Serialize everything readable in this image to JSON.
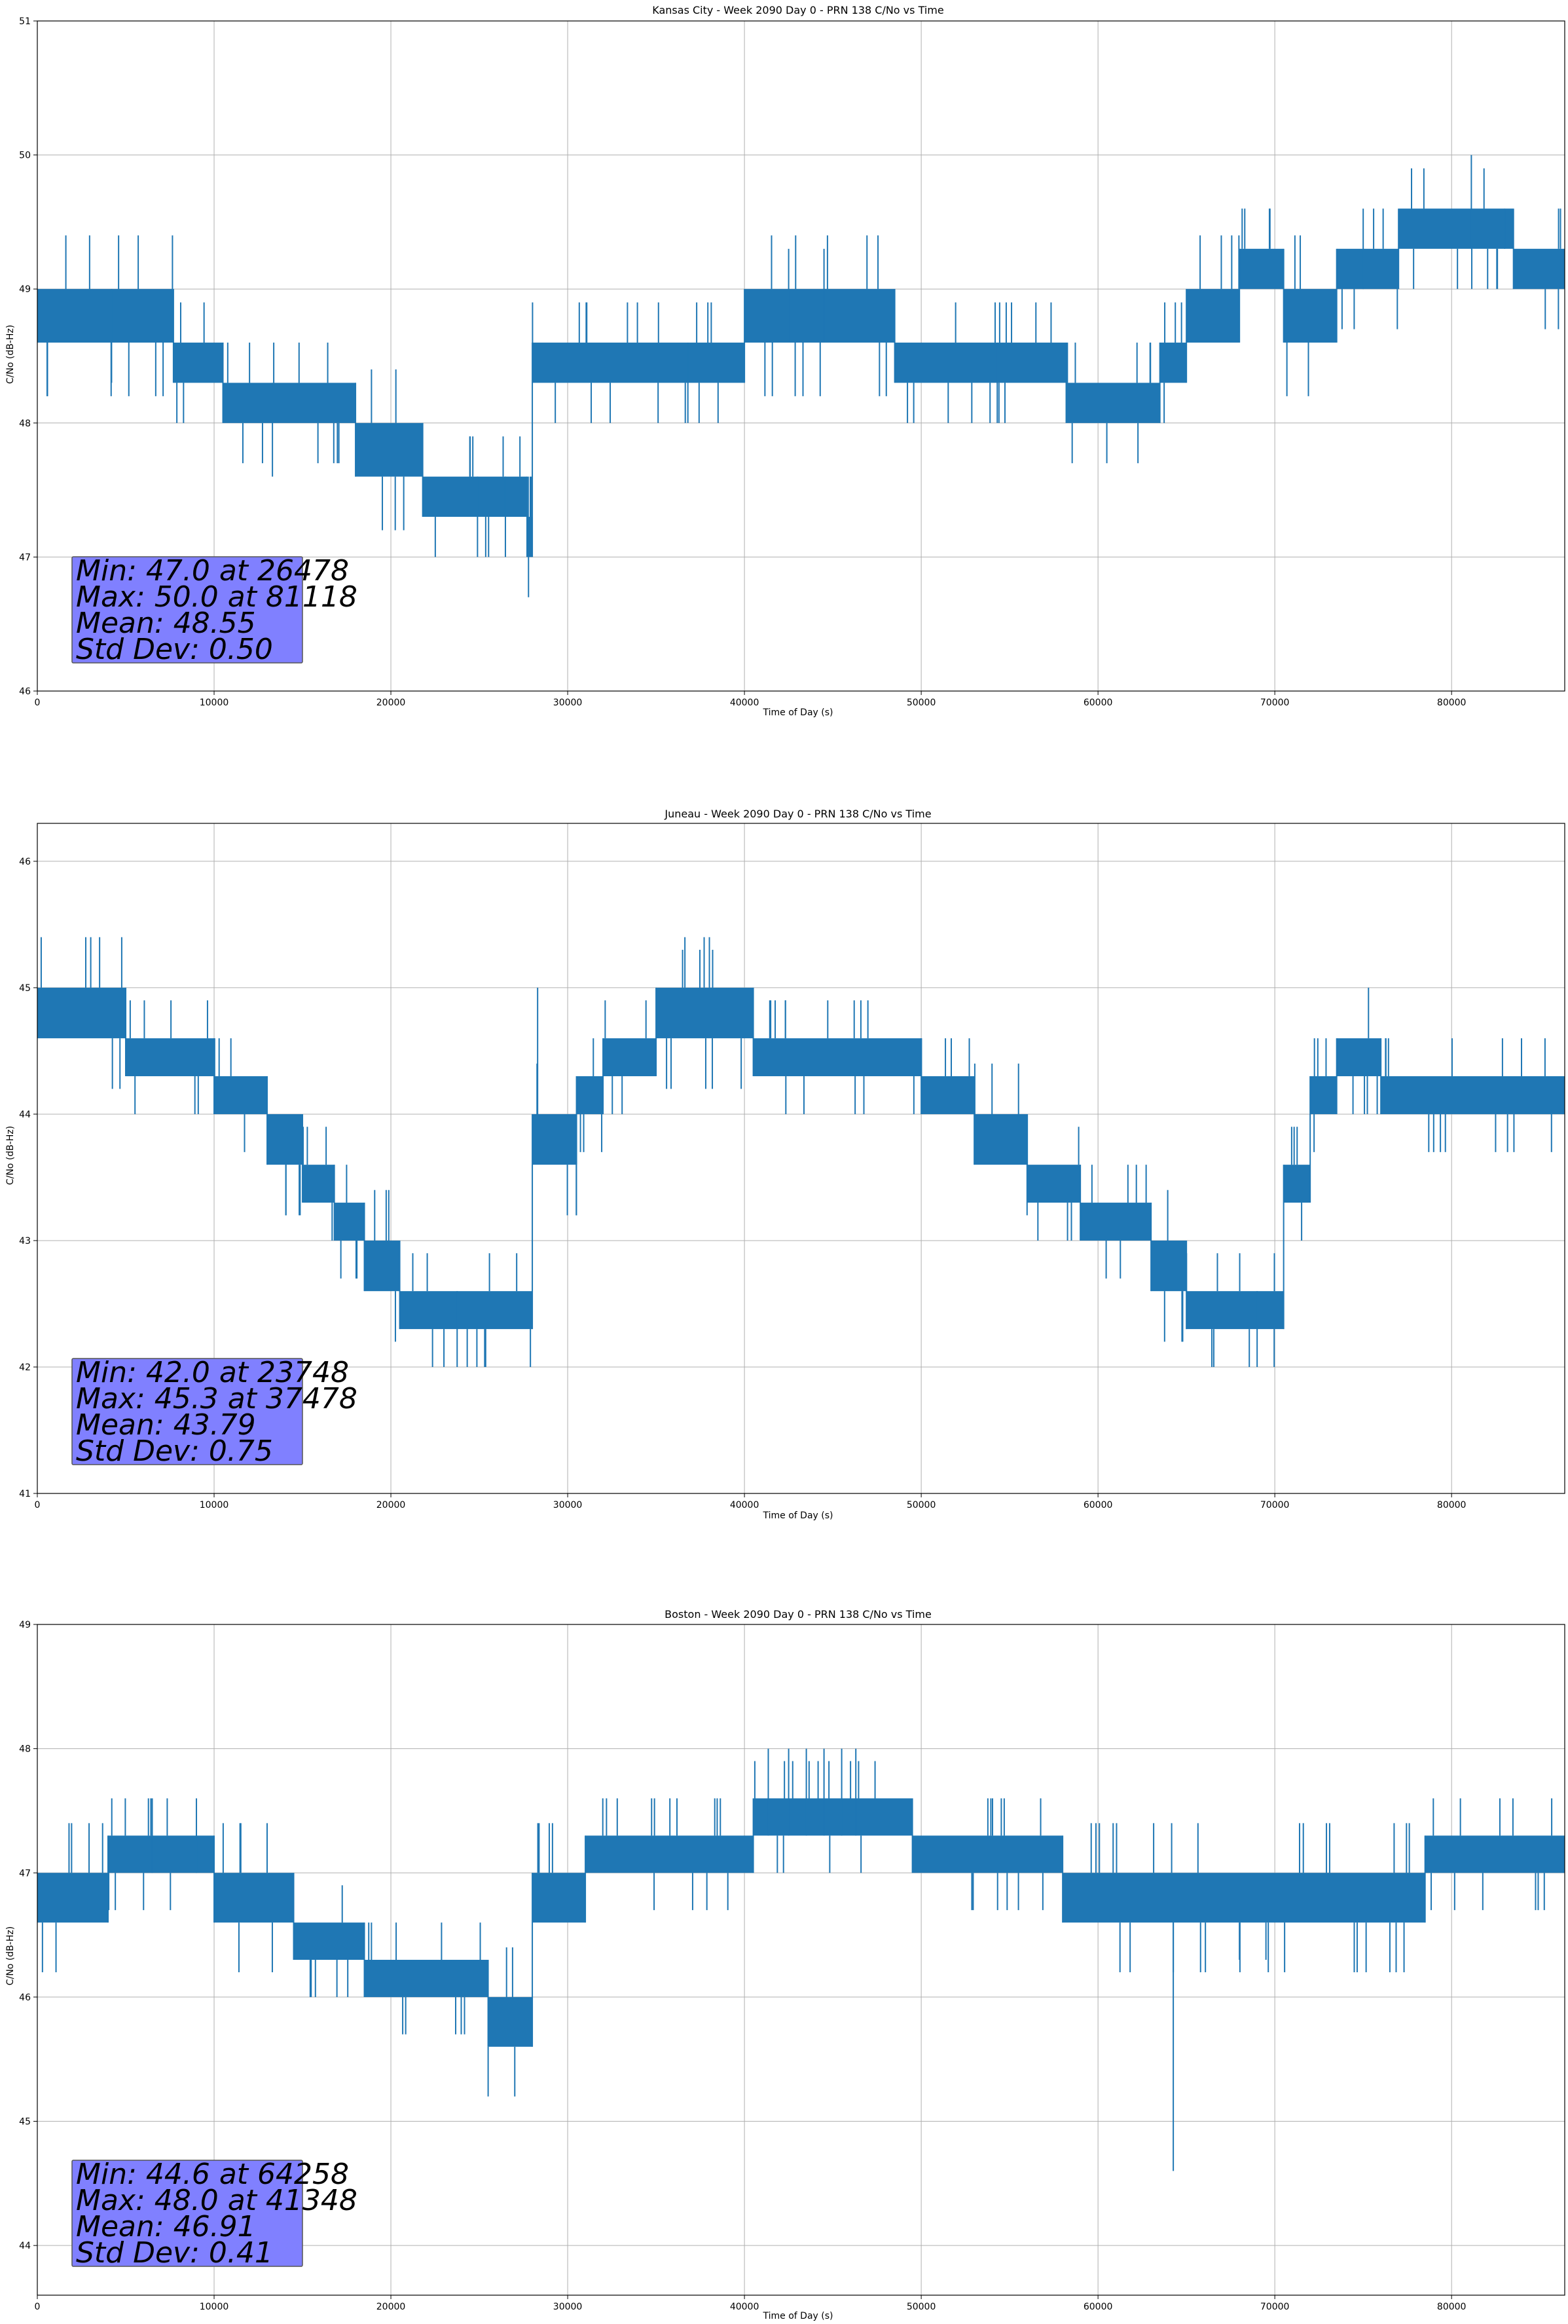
{
  "figure": {
    "charts": [
      {
        "title": "Kansas City - Week 2090 Day 0 - PRN 138 C/No vs Time",
        "xlabel": "Time of Day (s)",
        "ylabel": "C/No (dB-Hz)",
        "stats": [
          "Min: 47.0 at 26478",
          "Max: 50.0 at 81118",
          "Mean: 48.55",
          "Std Dev: 0.50"
        ]
      },
      {
        "title": "Juneau - Week 2090 Day 0 - PRN 138 C/No vs Time",
        "xlabel": "Time of Day (s)",
        "ylabel": "C/No (dB-Hz)",
        "stats": [
          "Min: 42.0 at 23748",
          "Max: 45.3 at 37478",
          "Mean: 43.79",
          "Std Dev: 0.75"
        ]
      },
      {
        "title": "Boston - Week 2090 Day 0 - PRN 138 C/No vs Time",
        "xlabel": "Time of Day (s)",
        "ylabel": "C/No (dB-Hz)",
        "stats": [
          "Min: 44.6 at 64258",
          "Max: 48.0 at 41348",
          "Mean: 46.91",
          "Std Dev: 0.41"
        ]
      }
    ]
  },
  "colors": {
    "series": "#1f77b4",
    "grid": "#b0b0b0",
    "stats_box_fill": "#8080ff",
    "stats_box_edge": "#555555"
  },
  "chart_data": [
    {
      "type": "line",
      "title": "Kansas City - Week 2090 Day 0 - PRN 138 C/No vs Time",
      "xlabel": "Time of Day (s)",
      "ylabel": "C/No (dB-Hz)",
      "xlim": [
        0,
        86400
      ],
      "ylim": [
        46,
        51
      ],
      "xticks": [
        0,
        10000,
        20000,
        30000,
        40000,
        50000,
        60000,
        70000,
        80000
      ],
      "yticks": [
        46,
        47,
        48,
        49,
        50,
        51
      ],
      "grid": true,
      "series": [
        {
          "segments": [
            {
              "x0": 0,
              "x1": 7700,
              "lo": 48.6,
              "hi": 49.0
            },
            {
              "x0": 7700,
              "x1": 10500,
              "lo": 48.3,
              "hi": 48.6
            },
            {
              "x0": 10500,
              "x1": 18000,
              "lo": 48.0,
              "hi": 48.3
            },
            {
              "x0": 18000,
              "x1": 21800,
              "lo": 47.6,
              "hi": 48.0
            },
            {
              "x0": 21800,
              "x1": 27700,
              "lo": 47.3,
              "hi": 47.6
            },
            {
              "x0": 27700,
              "x1": 28000,
              "lo": 47.0,
              "hi": 47.3
            },
            {
              "x0": 28000,
              "x1": 40000,
              "lo": 48.3,
              "hi": 48.6
            },
            {
              "x0": 40000,
              "x1": 48500,
              "lo": 48.6,
              "hi": 49.0
            },
            {
              "x0": 48500,
              "x1": 58200,
              "lo": 48.3,
              "hi": 48.6
            },
            {
              "x0": 58200,
              "x1": 63500,
              "lo": 48.0,
              "hi": 48.3
            },
            {
              "x0": 63500,
              "x1": 65000,
              "lo": 48.3,
              "hi": 48.6
            },
            {
              "x0": 65000,
              "x1": 68000,
              "lo": 48.6,
              "hi": 49.0
            },
            {
              "x0": 68000,
              "x1": 70500,
              "lo": 49.0,
              "hi": 49.3
            },
            {
              "x0": 70500,
              "x1": 73500,
              "lo": 48.6,
              "hi": 49.0
            },
            {
              "x0": 73500,
              "x1": 77000,
              "lo": 49.0,
              "hi": 49.3
            },
            {
              "x0": 77000,
              "x1": 83500,
              "lo": 49.3,
              "hi": 49.6
            },
            {
              "x0": 83500,
              "x1": 86400,
              "lo": 49.0,
              "hi": 49.3
            }
          ],
          "excursions": [
            {
              "x": 4200,
              "lo": 48.3,
              "hi": 49.0
            },
            {
              "x": 13300,
              "lo": 47.6,
              "hi": 48.3
            },
            {
              "x": 24900,
              "lo": 47.0,
              "hi": 47.6
            },
            {
              "x": 26478,
              "lo": 47.0,
              "hi": 47.6
            },
            {
              "x": 36800,
              "lo": 48.0,
              "hi": 48.6
            },
            {
              "x": 42500,
              "lo": 48.6,
              "hi": 49.3
            },
            {
              "x": 44500,
              "lo": 48.6,
              "hi": 49.3
            },
            {
              "x": 54300,
              "lo": 48.0,
              "hi": 48.6
            },
            {
              "x": 75000,
              "lo": 49.0,
              "hi": 49.6
            },
            {
              "x": 81118,
              "lo": 49.3,
              "hi": 50.0
            },
            {
              "x": 83000,
              "lo": 49.3,
              "hi": 49.6
            }
          ]
        }
      ]
    },
    {
      "type": "line",
      "title": "Juneau - Week 2090 Day 0 - PRN 138 C/No vs Time",
      "xlabel": "Time of Day (s)",
      "ylabel": "C/No (dB-Hz)",
      "xlim": [
        0,
        86400
      ],
      "ylim": [
        41,
        46.3
      ],
      "xticks": [
        0,
        10000,
        20000,
        30000,
        40000,
        50000,
        60000,
        70000,
        80000
      ],
      "yticks": [
        41,
        42,
        43,
        44,
        45,
        46
      ],
      "grid": true,
      "series": [
        {
          "segments": [
            {
              "x0": 0,
              "x1": 5000,
              "lo": 44.6,
              "hi": 45.0
            },
            {
              "x0": 5000,
              "x1": 10000,
              "lo": 44.3,
              "hi": 44.6
            },
            {
              "x0": 10000,
              "x1": 13000,
              "lo": 44.0,
              "hi": 44.3
            },
            {
              "x0": 13000,
              "x1": 15000,
              "lo": 43.6,
              "hi": 44.0
            },
            {
              "x0": 15000,
              "x1": 16800,
              "lo": 43.3,
              "hi": 43.6
            },
            {
              "x0": 16800,
              "x1": 18500,
              "lo": 43.0,
              "hi": 43.3
            },
            {
              "x0": 18500,
              "x1": 20500,
              "lo": 42.6,
              "hi": 43.0
            },
            {
              "x0": 20500,
              "x1": 28000,
              "lo": 42.3,
              "hi": 42.6
            },
            {
              "x0": 28000,
              "x1": 30500,
              "lo": 43.6,
              "hi": 44.0
            },
            {
              "x0": 30500,
              "x1": 32000,
              "lo": 44.0,
              "hi": 44.3
            },
            {
              "x0": 32000,
              "x1": 35000,
              "lo": 44.3,
              "hi": 44.6
            },
            {
              "x0": 35000,
              "x1": 40500,
              "lo": 44.6,
              "hi": 45.0
            },
            {
              "x0": 40500,
              "x1": 50000,
              "lo": 44.3,
              "hi": 44.6
            },
            {
              "x0": 50000,
              "x1": 53000,
              "lo": 44.0,
              "hi": 44.3
            },
            {
              "x0": 53000,
              "x1": 56000,
              "lo": 43.6,
              "hi": 44.0
            },
            {
              "x0": 56000,
              "x1": 59000,
              "lo": 43.3,
              "hi": 43.6
            },
            {
              "x0": 59000,
              "x1": 63000,
              "lo": 43.0,
              "hi": 43.3
            },
            {
              "x0": 63000,
              "x1": 65000,
              "lo": 42.6,
              "hi": 43.0
            },
            {
              "x0": 65000,
              "x1": 70500,
              "lo": 42.3,
              "hi": 42.6
            },
            {
              "x0": 70500,
              "x1": 72000,
              "lo": 43.3,
              "hi": 43.6
            },
            {
              "x0": 72000,
              "x1": 73500,
              "lo": 44.0,
              "hi": 44.3
            },
            {
              "x0": 73500,
              "x1": 76000,
              "lo": 44.3,
              "hi": 44.6
            },
            {
              "x0": 76000,
              "x1": 86400,
              "lo": 44.0,
              "hi": 44.3
            }
          ],
          "excursions": [
            {
              "x": 23748,
              "lo": 42.0,
              "hi": 42.6
            },
            {
              "x": 28300,
              "lo": 44.0,
              "hi": 45.0
            },
            {
              "x": 36500,
              "lo": 45.0,
              "hi": 45.3
            },
            {
              "x": 37478,
              "lo": 45.0,
              "hi": 45.3
            },
            {
              "x": 38200,
              "lo": 45.0,
              "hi": 45.3
            },
            {
              "x": 69000,
              "lo": 42.0,
              "hi": 42.6
            },
            {
              "x": 75300,
              "lo": 44.6,
              "hi": 45.0
            }
          ]
        }
      ]
    },
    {
      "type": "line",
      "title": "Boston - Week 2090 Day 0 - PRN 138 C/No vs Time",
      "xlabel": "Time of Day (s)",
      "ylabel": "C/No (dB-Hz)",
      "xlim": [
        0,
        86400
      ],
      "ylim": [
        43.6,
        49
      ],
      "xticks": [
        0,
        10000,
        20000,
        30000,
        40000,
        50000,
        60000,
        70000,
        80000
      ],
      "yticks": [
        44,
        45,
        46,
        47,
        48,
        49
      ],
      "grid": true,
      "series": [
        {
          "segments": [
            {
              "x0": 0,
              "x1": 4000,
              "lo": 46.6,
              "hi": 47.0
            },
            {
              "x0": 4000,
              "x1": 10000,
              "lo": 47.0,
              "hi": 47.3
            },
            {
              "x0": 10000,
              "x1": 14500,
              "lo": 46.6,
              "hi": 47.0
            },
            {
              "x0": 14500,
              "x1": 18500,
              "lo": 46.3,
              "hi": 46.6
            },
            {
              "x0": 18500,
              "x1": 25500,
              "lo": 46.0,
              "hi": 46.3
            },
            {
              "x0": 25500,
              "x1": 28000,
              "lo": 45.6,
              "hi": 46.0
            },
            {
              "x0": 28000,
              "x1": 31000,
              "lo": 46.6,
              "hi": 47.0
            },
            {
              "x0": 31000,
              "x1": 40500,
              "lo": 47.0,
              "hi": 47.3
            },
            {
              "x0": 40500,
              "x1": 49500,
              "lo": 47.3,
              "hi": 47.6
            },
            {
              "x0": 49500,
              "x1": 58000,
              "lo": 47.0,
              "hi": 47.3
            },
            {
              "x0": 58000,
              "x1": 78500,
              "lo": 46.6,
              "hi": 47.0
            },
            {
              "x0": 78500,
              "x1": 86400,
              "lo": 47.0,
              "hi": 47.3
            }
          ],
          "excursions": [
            {
              "x": 6500,
              "lo": 47.0,
              "hi": 47.6
            },
            {
              "x": 9000,
              "lo": 47.0,
              "hi": 47.6
            },
            {
              "x": 41348,
              "lo": 47.3,
              "hi": 48.0
            },
            {
              "x": 42500,
              "lo": 47.3,
              "hi": 48.0
            },
            {
              "x": 43500,
              "lo": 47.3,
              "hi": 48.0
            },
            {
              "x": 44500,
              "lo": 47.3,
              "hi": 48.0
            },
            {
              "x": 45500,
              "lo": 47.3,
              "hi": 48.0
            },
            {
              "x": 46300,
              "lo": 47.3,
              "hi": 48.0
            },
            {
              "x": 64258,
              "lo": 44.6,
              "hi": 46.6
            },
            {
              "x": 68000,
              "lo": 46.3,
              "hi": 46.6
            },
            {
              "x": 69500,
              "lo": 46.3,
              "hi": 46.6
            }
          ]
        }
      ]
    }
  ]
}
